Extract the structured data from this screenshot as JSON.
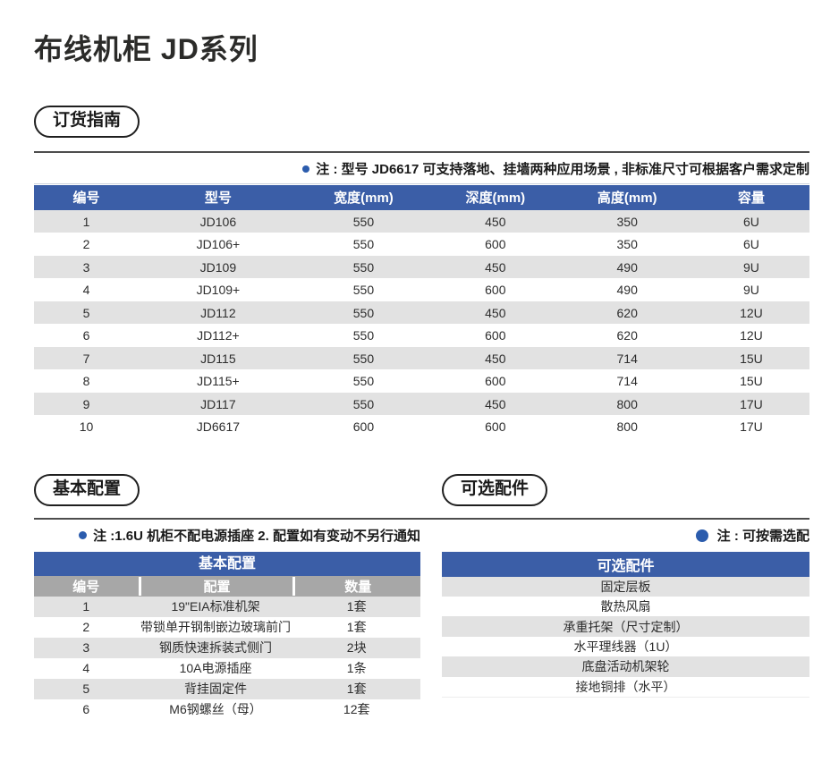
{
  "page": {
    "title": "布线机柜 JD系列"
  },
  "colors": {
    "header_blue": "#3b5ea7",
    "subheader_gray": "#a7a7a7",
    "row_stripe_gray": "#e2e2e2",
    "note_dot_blue": "#2b5cad"
  },
  "ordering_guide": {
    "badge": "订货指南",
    "note": "注 : 型号 JD6617 可支持落地、挂墙两种应用场景 , 非标准尺寸可根据客户需求定制",
    "table": {
      "headers": [
        "编号",
        "型号",
        "宽度(mm)",
        "深度(mm)",
        "高度(mm)",
        "容量"
      ],
      "rows": [
        [
          "1",
          "JD106",
          "550",
          "450",
          "350",
          "6U"
        ],
        [
          "2",
          "JD106+",
          "550",
          "600",
          "350",
          "6U"
        ],
        [
          "3",
          "JD109",
          "550",
          "450",
          "490",
          "9U"
        ],
        [
          "4",
          "JD109+",
          "550",
          "600",
          "490",
          "9U"
        ],
        [
          "5",
          "JD112",
          "550",
          "450",
          "620",
          "12U"
        ],
        [
          "6",
          "JD112+",
          "550",
          "600",
          "620",
          "12U"
        ],
        [
          "7",
          "JD115",
          "550",
          "450",
          "714",
          "15U"
        ],
        [
          "8",
          "JD115+",
          "550",
          "600",
          "714",
          "15U"
        ],
        [
          "9",
          "JD117",
          "550",
          "450",
          "800",
          "17U"
        ],
        [
          "10",
          "JD6617",
          "600",
          "600",
          "800",
          "17U"
        ]
      ]
    }
  },
  "basic_config": {
    "badge": "基本配置",
    "note": "注 :1.6U 机柜不配电源插座 2. 配置如有变动不另行通知",
    "table": {
      "title": "基本配置",
      "headers": [
        "编号",
        "配置",
        "数量"
      ],
      "rows": [
        [
          "1",
          "19\"EIA标准机架",
          "1套"
        ],
        [
          "2",
          "带锁单开钢制嵌边玻璃前门",
          "1套"
        ],
        [
          "3",
          "钢质快速拆装式侧门",
          "2块"
        ],
        [
          "4",
          "10A电源插座",
          "1条"
        ],
        [
          "5",
          "背挂固定件",
          "1套"
        ],
        [
          "6",
          "M6钢螺丝（母）",
          "12套"
        ]
      ]
    }
  },
  "optional_accessories": {
    "badge": "可选配件",
    "note": "注 : 可按需选配",
    "table": {
      "title": "可选配件",
      "rows": [
        "固定层板",
        "散热风扇",
        "承重托架（尺寸定制）",
        "水平理线器（1U）",
        "底盘活动机架轮",
        "接地铜排（水平）"
      ]
    }
  }
}
